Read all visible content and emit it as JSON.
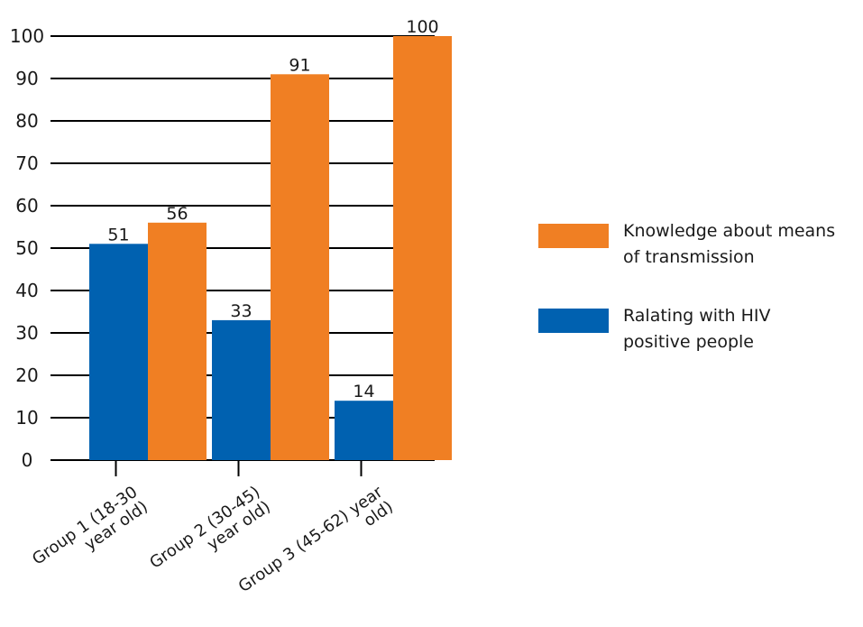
{
  "chart_data": {
    "type": "bar",
    "categories": [
      [
        "Group 1 (18-30",
        "year old)"
      ],
      [
        "Group 2 (30-45)",
        "year old)"
      ],
      [
        "Group 3 (45-62) year",
        "old)"
      ]
    ],
    "series": [
      {
        "name": "Ralating with HIV positive people",
        "legend_lines": [
          "Ralating with HIV",
          "positive people"
        ],
        "color": "#0061b0",
        "values": [
          51,
          33,
          14
        ]
      },
      {
        "name": "Knowledge about means of transmission",
        "legend_lines": [
          "Knowledge about means",
          "of transmission"
        ],
        "color": "#f07f23",
        "values": [
          56,
          91,
          100
        ]
      }
    ],
    "ylim": [
      0,
      100
    ],
    "yticks": [
      0,
      10,
      20,
      30,
      40,
      50,
      60,
      70,
      80,
      90,
      100
    ],
    "grid": true,
    "legend_order": [
      1,
      0
    ],
    "legend_position": "right"
  }
}
